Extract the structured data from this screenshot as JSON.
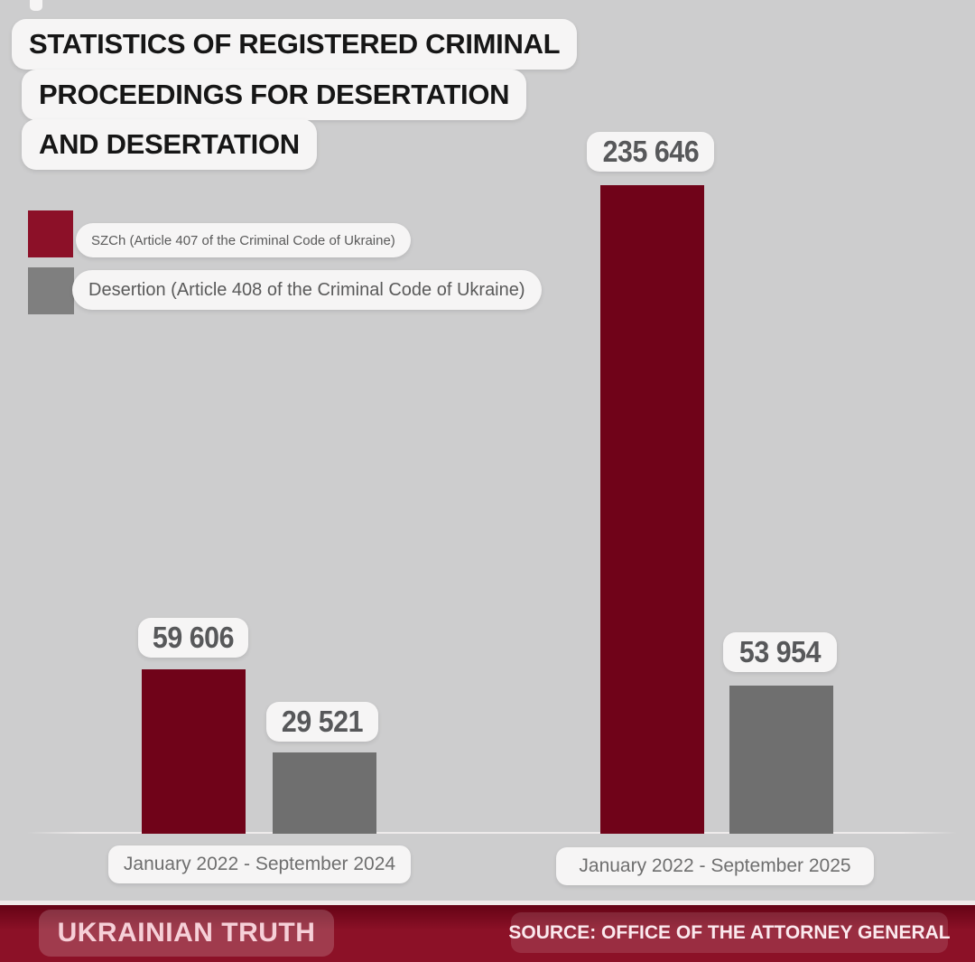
{
  "title": {
    "lines": [
      "STATISTICS OF REGISTERED CRIMINAL",
      "PROCEEDINGS FOR DESERTATION",
      "AND DESERTATION"
    ]
  },
  "legend": {
    "items": [
      {
        "label": "SZCh (Article 407 of the Criminal Code of Ukraine)",
        "color": "#8c1028"
      },
      {
        "label": "Desertion (Article 408 of the Criminal Code of Ukraine)",
        "color": "#7f7f7f"
      }
    ]
  },
  "chart_data": {
    "type": "bar",
    "title": "STATISTICS OF REGISTERED CRIMINAL PROCEEDINGS FOR DESERTATION AND DESERTATION",
    "categories": [
      "January 2022 - September 2024",
      "January 2022 - September 2025"
    ],
    "series": [
      {
        "name": "SZCh (Article 407 of the Criminal Code of Ukraine)",
        "color": "#700319",
        "values": [
          59606,
          235646
        ]
      },
      {
        "name": "Desertion (Article 408 of the Criminal Code of Ukraine)",
        "color": "#6f6f6f",
        "values": [
          29521,
          53954
        ]
      }
    ],
    "display_values": [
      [
        "59 606",
        "235 646"
      ],
      [
        "29 521",
        "53 954"
      ]
    ],
    "ylim": [
      0,
      235646
    ],
    "grid": false,
    "legend_position": "top-left",
    "xlabel": "",
    "ylabel": ""
  },
  "footer": {
    "brand": "UKRAINIAN TRUTH",
    "source": "SOURCE: OFFICE OF THE ATTORNEY GENERAL"
  },
  "colors": {
    "background": "#cdcdce",
    "chip_white": "#f6f5f5",
    "title_text": "#161616",
    "value_text": "#57585a",
    "category_text": "#6f6f6f",
    "bar_red": "#700319",
    "bar_gray": "#6f6f6f",
    "footer_background": "#8c1127",
    "footer_brand_text": "#f6d0d8",
    "footer_source_text": "#fbe9ee",
    "axis_line": "#eeebeb"
  }
}
